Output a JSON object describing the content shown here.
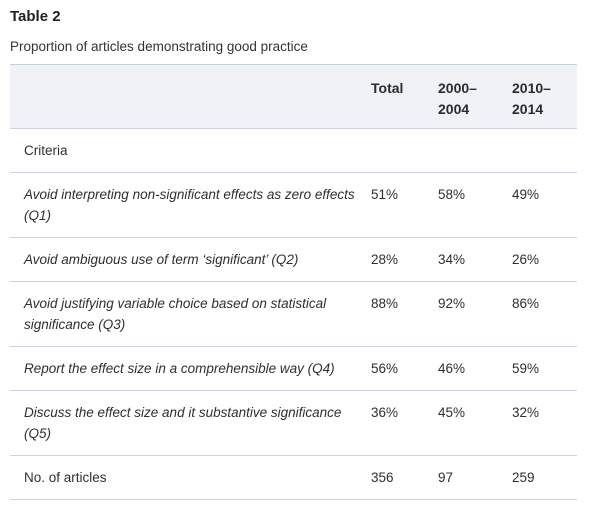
{
  "page": {
    "title": "Table 2",
    "caption": "Proportion of articles demonstrating good practice"
  },
  "table": {
    "headers": {
      "criteria": "",
      "total": "Total",
      "period1": "2000–2004",
      "period2": "2010–2014"
    },
    "section_label": "Criteria",
    "rows": [
      {
        "label": "Avoid interpreting non-significant effects as zero effects (Q1)",
        "total": "51%",
        "period1": "58%",
        "period2": "49%"
      },
      {
        "label": "Avoid ambiguous use of term ‘significant’ (Q2)",
        "total": "28%",
        "period1": "34%",
        "period2": "26%"
      },
      {
        "label": "Avoid justifying variable choice based on statistical significance (Q3)",
        "total": "88%",
        "period1": "92%",
        "period2": "86%"
      },
      {
        "label": "Report the effect size in a comprehensible way (Q4)",
        "total": "56%",
        "period1": "46%",
        "period2": "59%"
      },
      {
        "label": "Discuss the effect size and it substantive significance (Q5)",
        "total": "36%",
        "period1": "45%",
        "period2": "32%"
      }
    ],
    "footer": {
      "label": "No. of articles",
      "total": "356",
      "period1": "97",
      "period2": "259"
    },
    "colors": {
      "header_bg": "#f0f2f7",
      "border": "#ccd3de",
      "text": "#303030"
    }
  }
}
